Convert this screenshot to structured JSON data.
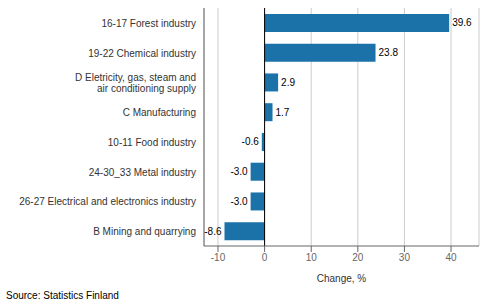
{
  "chart_data": {
    "type": "bar",
    "orientation": "horizontal",
    "categories": [
      "B Mining and quarrying",
      "26-27 Electrical and electronics industry",
      "24-30_33 Metal industry",
      "10-11 Food industry",
      "C Manufacturing",
      "D Eletricity, gas, steam and\nair conditioning supply",
      "19-22 Chemical industry",
      "16-17 Forest industry"
    ],
    "values": [
      -8.6,
      -3.0,
      -3.0,
      -0.6,
      1.7,
      2.9,
      23.8,
      39.6
    ],
    "value_labels": [
      "-8.6",
      "-3.0",
      "-3.0",
      "-0.6",
      "1.7",
      "2.9",
      "23.8",
      "39.6"
    ],
    "color": "#1a72a8",
    "xlabel": "Change, %",
    "annotation": "Source: Statistics Finland",
    "xlim": [
      -13,
      46
    ],
    "xticks": [
      -10,
      0,
      10,
      20,
      30,
      40
    ],
    "grid": true,
    "data_labels": true
  }
}
